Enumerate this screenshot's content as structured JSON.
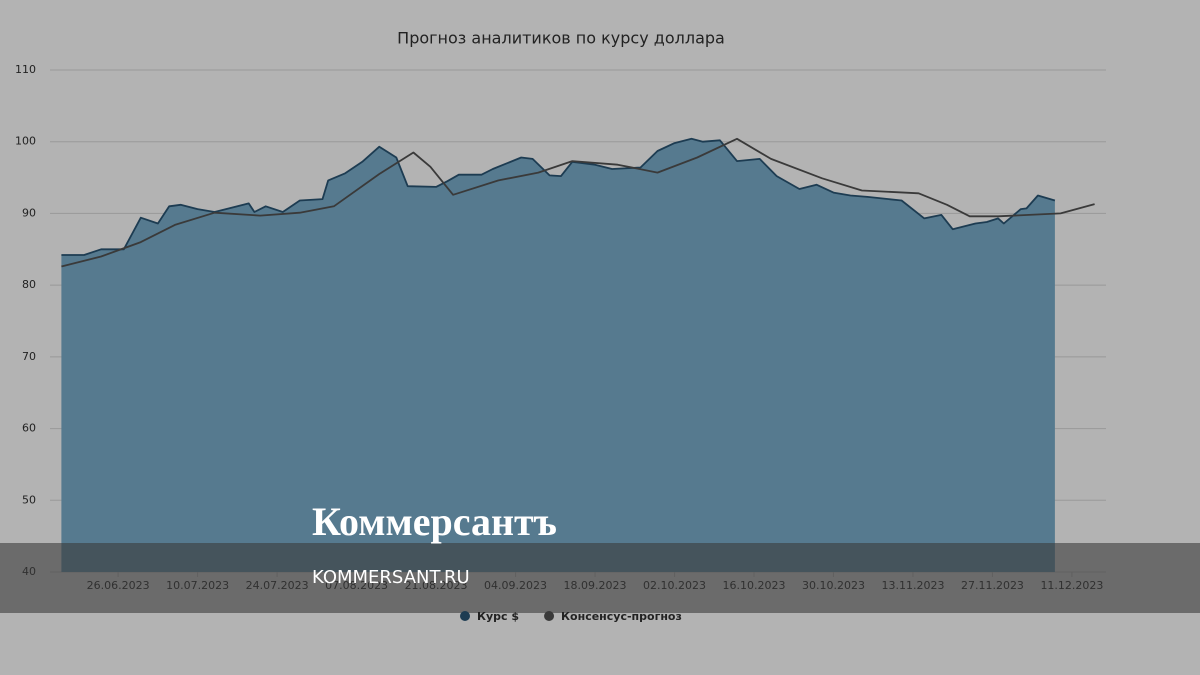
{
  "chart_data": {
    "type": "area_line",
    "title": "Прогноз аналитиков по курсу доллара",
    "ylim": [
      40,
      110
    ],
    "yticks": [
      40,
      50,
      60,
      70,
      80,
      90,
      100,
      110
    ],
    "grid": true,
    "xlim": [
      "14.06.2023",
      "17.12.2023"
    ],
    "xticks": [
      "26.06.2023",
      "10.07.2023",
      "24.07.2023",
      "07.08.2023",
      "21.08.2023",
      "04.09.2023",
      "18.09.2023",
      "02.10.2023",
      "16.10.2023",
      "30.10.2023",
      "13.11.2023",
      "27.11.2023",
      "11.12.2023"
    ],
    "legend": "bottom",
    "series": [
      {
        "name": "Курс $",
        "color": "#1d3c52",
        "fill": "#567a8f",
        "x": [
          "16.06.2023",
          "20.06.2023",
          "23.06.2023",
          "27.06.2023",
          "30.06.2023",
          "03.07.2023",
          "05.07.2023",
          "07.07.2023",
          "10.07.2023",
          "13.07.2023",
          "17.07.2023",
          "19.07.2023",
          "20.07.2023",
          "22.07.2023",
          "25.07.2023",
          "28.07.2023",
          "01.08.2023",
          "02.08.2023",
          "05.08.2023",
          "08.08.2023",
          "11.08.2023",
          "14.08.2023",
          "16.08.2023",
          "21.08.2023",
          "23.08.2023",
          "25.08.2023",
          "29.08.2023",
          "31.08.2023",
          "05.09.2023",
          "07.09.2023",
          "10.09.2023",
          "12.09.2023",
          "14.09.2023",
          "18.09.2023",
          "21.09.2023",
          "26.09.2023",
          "29.09.2023",
          "02.10.2023",
          "05.10.2023",
          "07.10.2023",
          "10.10.2023",
          "13.10.2023",
          "17.10.2023",
          "20.10.2023",
          "24.10.2023",
          "27.10.2023",
          "30.10.2023",
          "02.11.2023",
          "05.11.2023",
          "11.11.2023",
          "15.11.2023",
          "18.11.2023",
          "20.11.2023",
          "24.11.2023",
          "26.11.2023",
          "28.11.2023",
          "29.11.2023",
          "02.12.2023",
          "03.12.2023",
          "05.12.2023",
          "08.12.2023"
        ],
        "values": [
          84.2,
          84.2,
          85,
          85,
          89.4,
          88.6,
          91,
          91.2,
          90.6,
          90.2,
          91,
          91.4,
          90.2,
          91,
          90.2,
          91.8,
          92,
          94.6,
          95.6,
          97.2,
          99.3,
          97.8,
          93.8,
          93.7,
          94.5,
          95.4,
          95.4,
          96.2,
          97.8,
          97.6,
          95.3,
          95.2,
          97.2,
          96.8,
          96.2,
          96.4,
          98.7,
          99.8,
          100.4,
          100,
          100.2,
          97.3,
          97.6,
          95.2,
          93.4,
          94,
          92.9,
          92.5,
          92.3,
          91.8,
          89.3,
          89.8,
          87.8,
          88.6,
          88.8,
          89.3,
          88.6,
          90.6,
          90.7,
          92.5,
          91.8
        ]
      },
      {
        "name": "Консенсус-прогноз",
        "color": "#3a3a3a",
        "x": [
          "16.06.2023",
          "23.06.2023",
          "30.06.2023",
          "06.07.2023",
          "13.07.2023",
          "21.07.2023",
          "28.07.2023",
          "03.08.2023",
          "11.08.2023",
          "17.08.2023",
          "20.08.2023",
          "24.08.2023",
          "01.09.2023",
          "08.09.2023",
          "14.09.2023",
          "22.09.2023",
          "29.09.2023",
          "06.10.2023",
          "13.10.2023",
          "19.10.2023",
          "28.10.2023",
          "04.11.2023",
          "14.11.2023",
          "19.11.2023",
          "23.11.2023",
          "28.11.2023",
          "09.12.2023",
          "15.12.2023"
        ],
        "values": [
          82.6,
          84,
          86,
          88.4,
          90.1,
          89.7,
          90.1,
          91,
          95.5,
          98.5,
          96.5,
          92.6,
          94.6,
          95.7,
          97.3,
          96.8,
          95.7,
          97.8,
          100.4,
          97.6,
          94.9,
          93.2,
          92.8,
          91.2,
          89.6,
          89.6,
          90,
          91.3
        ]
      }
    ]
  },
  "watermark": {
    "logo": "Коммерсантъ",
    "site": "KOMMERSANT.RU"
  }
}
